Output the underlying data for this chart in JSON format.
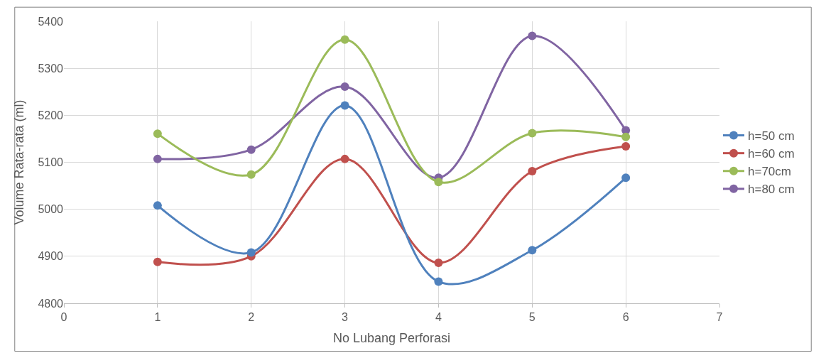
{
  "chart_data": {
    "type": "line",
    "xlabel": "No Lubang Perforasi",
    "ylabel": "Volume Rata-rata (ml)",
    "x": [
      1,
      2,
      3,
      4,
      5,
      6
    ],
    "series": [
      {
        "name": "h=50 cm",
        "color": "#4f81bd",
        "values": [
          5008,
          4908,
          5221,
          4846,
          4913,
          5067
        ]
      },
      {
        "name": "h=60 cm",
        "color": "#c0504d",
        "values": [
          4888,
          4900,
          5107,
          4886,
          5081,
          5134
        ]
      },
      {
        "name": "h=70cm",
        "color": "#9bbb59",
        "values": [
          5161,
          5074,
          5361,
          5058,
          5162,
          5154
        ]
      },
      {
        "name": "h=80 cm",
        "color": "#8064a2",
        "values": [
          5107,
          5127,
          5261,
          5067,
          5369,
          5168
        ]
      }
    ],
    "xlim": [
      0,
      7
    ],
    "xticks": [
      0,
      1,
      2,
      3,
      4,
      5,
      6,
      7
    ],
    "ylim": [
      4800,
      5400
    ],
    "yticks": [
      4800,
      4900,
      5000,
      5100,
      5200,
      5300,
      5400
    ],
    "grid": true,
    "legend": "right",
    "marker": "circle",
    "line_style": "solid"
  }
}
